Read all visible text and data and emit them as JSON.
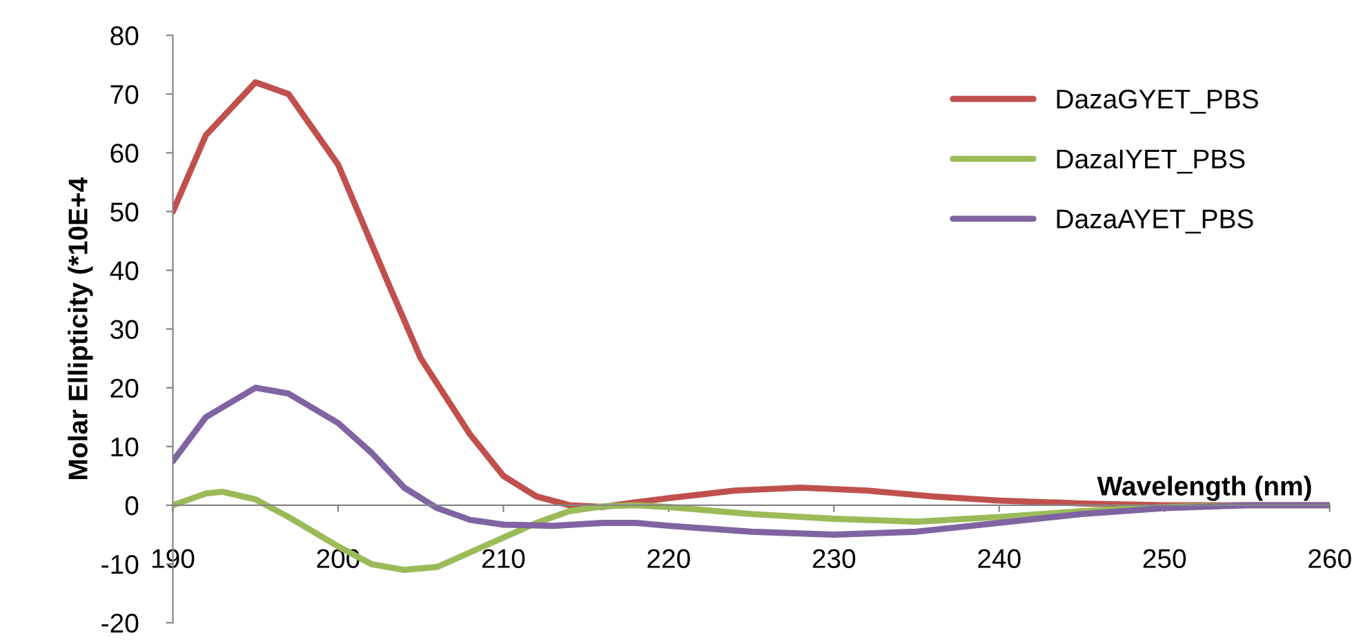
{
  "chart_data": {
    "type": "line",
    "xlabel": "Wavelength (nm)",
    "ylabel": "Molar Ellipticity (*10E+4",
    "xlim": [
      190,
      260
    ],
    "xticks": [
      190,
      200,
      210,
      220,
      230,
      240,
      250,
      260
    ],
    "ylim": [
      -20,
      80
    ],
    "yticks": [
      -20,
      -10,
      0,
      10,
      20,
      30,
      40,
      50,
      60,
      70,
      80
    ],
    "grid": false,
    "legend": "top right",
    "marker": "none",
    "line_style": "solid",
    "series": [
      {
        "name": "DazaGYET_PBS",
        "color": "#c0504d",
        "x": [
          190,
          192,
          195,
          197,
          200,
          203,
          205,
          208,
          210,
          212,
          214,
          216,
          218,
          220,
          224,
          228,
          232,
          236,
          240,
          245,
          250,
          255,
          260
        ],
        "values": [
          50,
          63,
          72,
          70,
          58,
          38,
          25,
          12,
          5,
          1.5,
          0,
          -0.3,
          0.5,
          1.2,
          2.5,
          3,
          2.5,
          1.5,
          0.8,
          0.3,
          0,
          0,
          0
        ]
      },
      {
        "name": "DazaIYET_PBS",
        "color": "#9bbb59",
        "x": [
          190,
          192,
          193,
          195,
          197,
          200,
          202,
          204,
          206,
          208,
          210,
          212,
          214,
          216,
          218,
          220,
          225,
          230,
          235,
          240,
          245,
          250,
          255,
          260
        ],
        "values": [
          0,
          2,
          2.3,
          1,
          -2,
          -7,
          -10,
          -11,
          -10.5,
          -8,
          -5.5,
          -3,
          -1,
          -0.2,
          0,
          -0.3,
          -1.5,
          -2.3,
          -2.8,
          -2,
          -1,
          -0.3,
          0,
          0
        ]
      },
      {
        "name": "DazaAYET_PBS",
        "color": "#8064a2",
        "x": [
          190,
          192,
          195,
          197,
          200,
          202,
          204,
          206,
          208,
          210,
          213,
          216,
          218,
          220,
          225,
          230,
          235,
          240,
          245,
          250,
          255,
          260
        ],
        "values": [
          7.5,
          15,
          20,
          19,
          14,
          9,
          3,
          -0.5,
          -2.5,
          -3.3,
          -3.5,
          -3,
          -3,
          -3.5,
          -4.5,
          -5,
          -4.5,
          -3,
          -1.5,
          -0.5,
          0,
          0
        ]
      }
    ]
  }
}
